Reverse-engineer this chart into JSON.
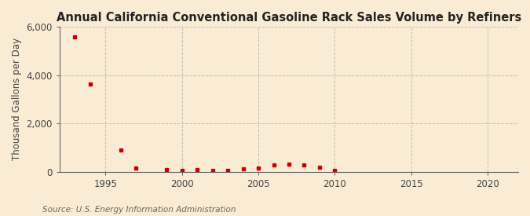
{
  "title": "Annual California Conventional Gasoline Rack Sales Volume by Refiners",
  "ylabel": "Thousand Gallons per Day",
  "source": "Source: U.S. Energy Information Administration",
  "background_color": "#faecd4",
  "plot_background_color": "#faecd4",
  "marker_color": "#cc0000",
  "grid_color": "#bbbbaa",
  "years": [
    1993,
    1994,
    1996,
    1997,
    1999,
    2000,
    2001,
    2002,
    2003,
    2004,
    2005,
    2006,
    2007,
    2008,
    2009,
    2010
  ],
  "values": [
    5580,
    3620,
    890,
    150,
    95,
    50,
    75,
    70,
    55,
    105,
    155,
    275,
    330,
    270,
    175,
    70
  ],
  "xlim": [
    1992,
    2022
  ],
  "ylim": [
    0,
    6000
  ],
  "yticks": [
    0,
    2000,
    4000,
    6000
  ],
  "xticks": [
    1995,
    2000,
    2005,
    2010,
    2015,
    2020
  ],
  "title_fontsize": 10.5,
  "label_fontsize": 8.5,
  "tick_fontsize": 8.5,
  "source_fontsize": 7.5
}
